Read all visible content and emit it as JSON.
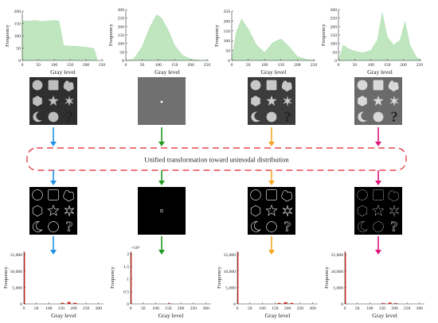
{
  "banner_text": "Unified transformation toward unimodal distribution",
  "colors": {
    "blue": "#1e90e6",
    "green": "#1f9a1f",
    "orange": "#f5a623",
    "magenta": "#e0157a",
    "top_hist_fill": "#bfe6bf",
    "bottom_hist": "#e8281e",
    "banner_border": "#e0242a"
  },
  "top_histograms": [
    {
      "ylabel": "Frequency",
      "xlabel": "Gray level",
      "y_ticks": [
        "0",
        "50",
        "100",
        "150",
        "200"
      ],
      "y_range": [
        0,
        200
      ],
      "x_ticks": [
        "0",
        "50",
        "100",
        "150",
        "200",
        "250"
      ],
      "x_range": [
        0,
        255
      ],
      "shape": "two-level plateau",
      "chart_data": {
        "type": "bar",
        "x": [
          0,
          20,
          40,
          60,
          80,
          100,
          115,
          130,
          150,
          170,
          190,
          210,
          225,
          235
        ],
        "values": [
          160,
          160,
          162,
          158,
          160,
          162,
          160,
          60,
          58,
          58,
          55,
          52,
          48,
          5
        ]
      }
    },
    {
      "ylabel": "Frequency",
      "xlabel": "Gray level",
      "y_ticks": [
        "0",
        "50",
        "100",
        "150",
        "200",
        "250",
        "300"
      ],
      "y_range": [
        0,
        300
      ],
      "x_ticks": [
        "0",
        "50",
        "100",
        "150",
        "200",
        "250"
      ],
      "x_range": [
        0,
        255
      ],
      "shape": "single peak",
      "chart_data": {
        "type": "bar",
        "x": [
          0,
          25,
          50,
          75,
          95,
          110,
          130,
          150,
          175,
          200,
          230,
          255
        ],
        "values": [
          0,
          10,
          80,
          200,
          270,
          250,
          180,
          90,
          30,
          8,
          2,
          0
        ]
      }
    },
    {
      "ylabel": "Frequency",
      "xlabel": "Gray level",
      "y_ticks": [
        "0",
        "50",
        "100",
        "150",
        "200",
        "250"
      ],
      "y_range": [
        0,
        250
      ],
      "x_ticks": [
        "0",
        "50",
        "100",
        "150",
        "200",
        "250"
      ],
      "x_range": [
        0,
        255
      ],
      "shape": "two peaks",
      "chart_data": {
        "type": "bar",
        "x": [
          0,
          15,
          30,
          50,
          75,
          100,
          125,
          150,
          175,
          200,
          230,
          255
        ],
        "values": [
          10,
          150,
          210,
          160,
          80,
          40,
          90,
          110,
          70,
          20,
          5,
          0
        ]
      }
    },
    {
      "ylabel": "Frequency",
      "xlabel": "Gray level",
      "y_ticks": [
        "0",
        "50",
        "100",
        "150",
        "200",
        "250",
        "300"
      ],
      "y_range": [
        0,
        300
      ],
      "x_ticks": [
        "0",
        "50",
        "100",
        "150",
        "200",
        "250"
      ],
      "x_range": [
        0,
        255
      ],
      "shape": "multiple peaks",
      "chart_data": {
        "type": "bar",
        "x": [
          0,
          15,
          30,
          50,
          75,
          100,
          120,
          135,
          150,
          170,
          190,
          205,
          220,
          240,
          255
        ],
        "values": [
          0,
          90,
          70,
          55,
          45,
          60,
          120,
          280,
          140,
          90,
          120,
          230,
          90,
          20,
          0
        ]
      }
    }
  ],
  "bottom_histograms": [
    {
      "ylabel": "Frequency",
      "xlabel": "Gray level",
      "y_ticks": [
        "0",
        "5,000",
        "10,000",
        "15,000"
      ],
      "y_range": [
        0,
        16000
      ],
      "x_ticks": [
        "0",
        "50",
        "100",
        "150",
        "200",
        "250",
        "300"
      ],
      "x_range": [
        0,
        320
      ],
      "y_multiplier": "",
      "chart_data": {
        "type": "bar",
        "x": [
          0,
          150,
          175,
          200
        ],
        "values": [
          15800,
          300,
          600,
          300
        ]
      }
    },
    {
      "ylabel": "Frequency",
      "xlabel": "Gray level",
      "y_ticks": [
        "0",
        "0.5",
        "1",
        "1.5",
        "2"
      ],
      "y_range": [
        0,
        2.1
      ],
      "x_ticks": [
        "0",
        "50",
        "100",
        "150",
        "200",
        "250",
        "300"
      ],
      "x_range": [
        0,
        320
      ],
      "y_multiplier": "×10⁴",
      "chart_data": {
        "type": "bar",
        "x": [
          0,
          150
        ],
        "values": [
          2.05,
          0.02
        ]
      }
    },
    {
      "ylabel": "Frequency",
      "xlabel": "Gray level",
      "y_ticks": [
        "0",
        "5,000",
        "10,000",
        "15,000"
      ],
      "y_range": [
        0,
        16000
      ],
      "x_ticks": [
        "0",
        "50",
        "100",
        "150",
        "200",
        "250",
        "300"
      ],
      "x_range": [
        0,
        320
      ],
      "y_multiplier": "",
      "chart_data": {
        "type": "bar",
        "x": [
          0,
          160,
          185,
          210
        ],
        "values": [
          15800,
          300,
          500,
          300
        ]
      }
    },
    {
      "ylabel": "Frequency",
      "xlabel": "Gray level",
      "y_ticks": [
        "0",
        "5,000",
        "10,000",
        "15,000"
      ],
      "y_range": [
        0,
        16000
      ],
      "x_ticks": [
        "0",
        "50",
        "100",
        "150",
        "200",
        "250",
        "300"
      ],
      "x_range": [
        0,
        320
      ],
      "y_multiplier": "",
      "chart_data": {
        "type": "bar",
        "x": [
          0,
          150,
          175,
          200
        ],
        "values": [
          15800,
          200,
          400,
          200
        ]
      }
    }
  ],
  "input_images": [
    {
      "style": "shapes",
      "noise": "low",
      "bg": "#2e2e2e",
      "fg": "#bdbdbd"
    },
    {
      "style": "noise-dot",
      "noise": "high",
      "bg": "#707070",
      "fg": "#ffffff"
    },
    {
      "style": "shapes",
      "noise": "medium",
      "bg": "#3a3a3a",
      "fg": "#c8c8c8"
    },
    {
      "style": "shapes-filled",
      "noise": "high",
      "bg": "#6a6a6a",
      "fg": "#d9d9d9"
    }
  ],
  "output_images": [
    {
      "style": "outline",
      "bg": "#000000",
      "fg": "#ffffff"
    },
    {
      "style": "single-ring",
      "bg": "#000000",
      "fg": "#ffffff"
    },
    {
      "style": "outline",
      "bg": "#000000",
      "fg": "#ffffff"
    },
    {
      "style": "outline-dotted",
      "bg": "#000000",
      "fg": "#ffffff"
    }
  ]
}
